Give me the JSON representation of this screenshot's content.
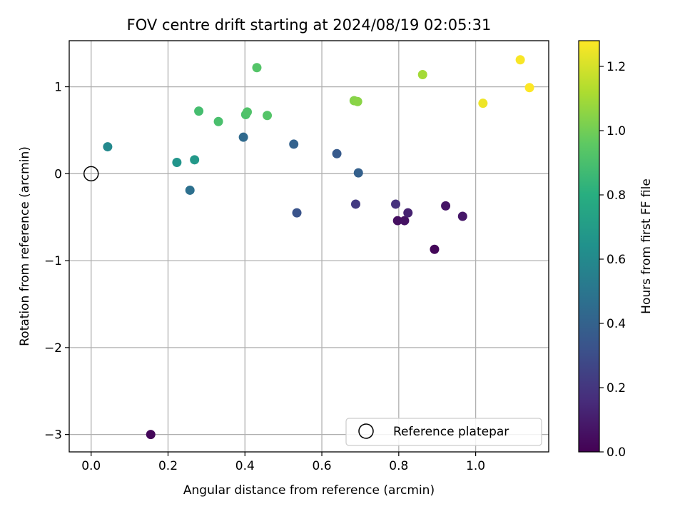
{
  "chart_data": {
    "type": "scatter",
    "title": "FOV centre drift starting at 2024/08/19 02:05:31",
    "xlabel": "Angular distance from reference (arcmin)",
    "ylabel": "Rotation from reference (arcmin)",
    "xlim": [
      -0.057,
      1.19
    ],
    "ylim": [
      -3.2,
      1.53
    ],
    "xticks": [
      0.0,
      0.2,
      0.4,
      0.6,
      0.8,
      1.0
    ],
    "xtick_labels": [
      "0.0",
      "0.2",
      "0.4",
      "0.6",
      "0.8",
      "1.0"
    ],
    "yticks": [
      -3,
      -2,
      -1,
      0,
      1
    ],
    "ytick_labels": [
      "−3",
      "−2",
      "−1",
      "0",
      "1"
    ],
    "grid": true,
    "colormap": "viridis",
    "colorbar": {
      "label": "Hours from first FF file",
      "range": [
        0.0,
        1.28
      ],
      "ticks": [
        0.0,
        0.2,
        0.4,
        0.6,
        0.8,
        1.0,
        1.2
      ],
      "tick_labels": [
        "0.0",
        "0.2",
        "0.4",
        "0.6",
        "0.8",
        "1.0",
        "1.2"
      ]
    },
    "legend": {
      "position": "lower-right",
      "entries": [
        {
          "label": "Reference platepar",
          "marker": "hollow-circle"
        }
      ]
    },
    "reference_point": {
      "x": 0.0,
      "y": 0.0
    },
    "points": [
      {
        "x": 0.155,
        "y": -3.0,
        "hours": 0.02
      },
      {
        "x": 0.893,
        "y": -0.87,
        "hours": 0.02
      },
      {
        "x": 0.797,
        "y": -0.54,
        "hours": 0.05
      },
      {
        "x": 0.815,
        "y": -0.54,
        "hours": 0.06
      },
      {
        "x": 0.922,
        "y": -0.37,
        "hours": 0.07
      },
      {
        "x": 0.966,
        "y": -0.49,
        "hours": 0.08
      },
      {
        "x": 0.824,
        "y": -0.45,
        "hours": 0.12
      },
      {
        "x": 0.792,
        "y": -0.35,
        "hours": 0.18
      },
      {
        "x": 0.688,
        "y": -0.35,
        "hours": 0.22
      },
      {
        "x": 0.535,
        "y": -0.45,
        "hours": 0.33
      },
      {
        "x": 0.639,
        "y": 0.23,
        "hours": 0.36
      },
      {
        "x": 0.695,
        "y": 0.01,
        "hours": 0.39
      },
      {
        "x": 0.527,
        "y": 0.34,
        "hours": 0.4
      },
      {
        "x": 0.396,
        "y": 0.42,
        "hours": 0.44
      },
      {
        "x": 0.257,
        "y": -0.19,
        "hours": 0.47
      },
      {
        "x": 0.043,
        "y": 0.31,
        "hours": 0.6
      },
      {
        "x": 0.223,
        "y": 0.13,
        "hours": 0.66
      },
      {
        "x": 0.269,
        "y": 0.16,
        "hours": 0.68
      },
      {
        "x": 0.28,
        "y": 0.72,
        "hours": 0.89
      },
      {
        "x": 0.331,
        "y": 0.6,
        "hours": 0.9
      },
      {
        "x": 0.402,
        "y": 0.68,
        "hours": 0.91
      },
      {
        "x": 0.406,
        "y": 0.71,
        "hours": 0.92
      },
      {
        "x": 0.458,
        "y": 0.67,
        "hours": 0.93
      },
      {
        "x": 0.431,
        "y": 1.22,
        "hours": 0.93
      },
      {
        "x": 0.684,
        "y": 0.84,
        "hours": 1.04
      },
      {
        "x": 0.693,
        "y": 0.83,
        "hours": 1.05
      },
      {
        "x": 0.862,
        "y": 1.14,
        "hours": 1.1
      },
      {
        "x": 1.019,
        "y": 0.81,
        "hours": 1.25
      },
      {
        "x": 1.116,
        "y": 1.31,
        "hours": 1.27
      },
      {
        "x": 1.14,
        "y": 0.99,
        "hours": 1.28
      }
    ]
  }
}
